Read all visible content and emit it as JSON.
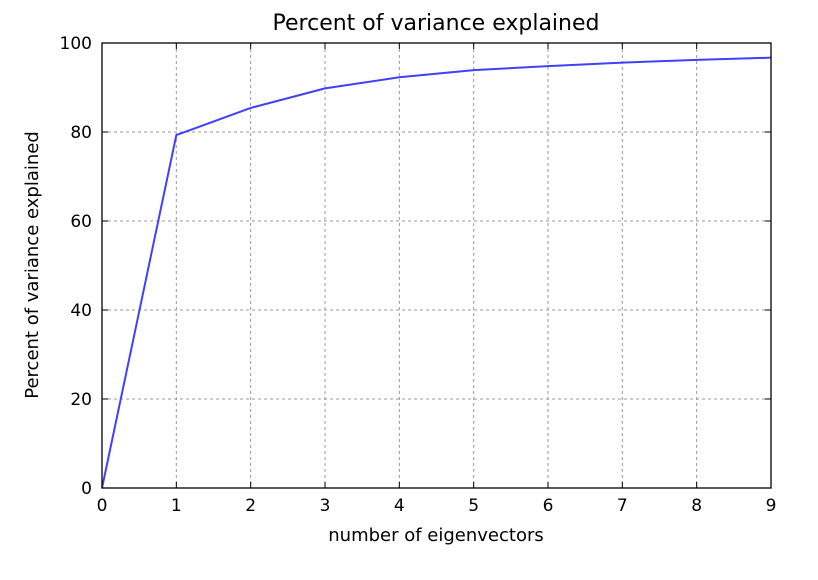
{
  "chart_data": {
    "type": "line",
    "title": "Percent of variance explained",
    "xlabel": "number of eigenvectors",
    "ylabel": "Percent of variance explained",
    "xlim": [
      0,
      9
    ],
    "ylim": [
      0,
      100
    ],
    "x_ticks": [
      0,
      1,
      2,
      3,
      4,
      5,
      6,
      7,
      8,
      9
    ],
    "y_ticks": [
      0,
      20,
      40,
      60,
      80,
      100
    ],
    "grid": true,
    "series": [
      {
        "color": "#4040ff",
        "x": [
          0,
          1,
          2,
          3,
          4,
          5,
          6,
          7,
          8,
          9
        ],
        "y": [
          0,
          79.3,
          85.4,
          89.8,
          92.3,
          93.9,
          94.8,
          95.6,
          96.2,
          96.7
        ]
      }
    ]
  }
}
